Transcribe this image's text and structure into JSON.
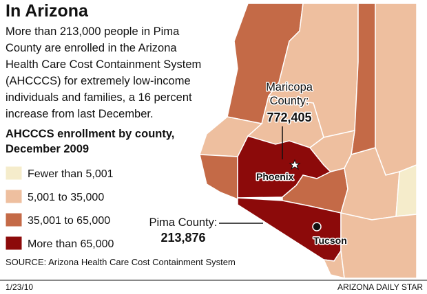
{
  "header": {
    "title": "In Arizona",
    "description": [
      "More than 213,000 people in Pima",
      "County are enrolled in the Arizona",
      "Health Care Cost Containment System",
      "(AHCCCS) for extremely low-income",
      "individuals and families, a 16 percent",
      "increase from last December."
    ]
  },
  "legend": {
    "title": [
      "AHCCCS enrollment by county,",
      "December 2009"
    ],
    "items": [
      {
        "label": "Fewer than 5,001",
        "color": "#f5eccb"
      },
      {
        "label": "5,001 to 35,000",
        "color": "#eebf9f"
      },
      {
        "label": "35,001 to 65,000",
        "color": "#c46a47"
      },
      {
        "label": "More than 65,000",
        "color": "#8c0a0a"
      }
    ]
  },
  "map": {
    "callouts": [
      {
        "label": [
          "Maricopa",
          "County:"
        ],
        "value": "772,405"
      },
      {
        "label": [
          "Pima County:"
        ],
        "value": "213,876"
      }
    ],
    "cities": [
      "Phoenix",
      "Tucson"
    ]
  },
  "source": "SOURCE: Arizona Health Care Cost Containment System",
  "footer": {
    "date": "1/23/10",
    "publisher": "ARIZONA DAILY STAR"
  }
}
